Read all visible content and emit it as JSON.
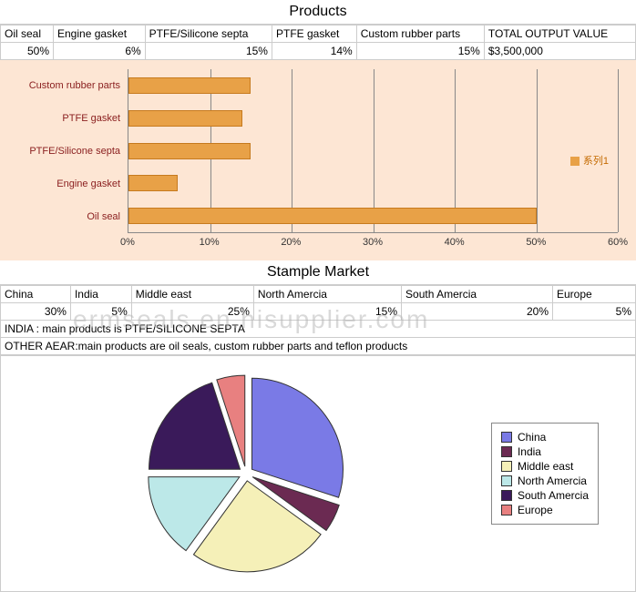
{
  "products": {
    "title": "Products",
    "headers": [
      "Oil seal",
      "Engine gasket",
      "PTFE/Silicone septa",
      "PTFE gasket",
      "Custom rubber parts",
      "TOTAL OUTPUT VALUE"
    ],
    "values": [
      "50%",
      "6%",
      "15%",
      "14%",
      "15%",
      "$3,500,000"
    ]
  },
  "barChart": {
    "bg": "#fde6d4",
    "barColor": "#e8a147",
    "barBorder": "#c67a1e",
    "labelColor": "#8b2020",
    "categories": [
      "Custom rubber parts",
      "PTFE gasket",
      "PTFE/Silicone septa",
      "Engine gasket",
      "Oil seal"
    ],
    "values": [
      15,
      14,
      15,
      6,
      50
    ],
    "xticks": [
      0,
      10,
      20,
      30,
      40,
      50,
      60
    ],
    "xmax": 60,
    "legend": "系列1"
  },
  "market": {
    "title": "Stample Market",
    "headers": [
      "China",
      "India",
      "Middle east",
      "North Amercia",
      "South Amercia",
      "Europe"
    ],
    "values": [
      "30%",
      "5%",
      "25%",
      "15%",
      "20%",
      "5%"
    ]
  },
  "notes": {
    "line1": "INDIA : main products is PTFE/SILICONE SEPTA",
    "line2": "OTHER AEAR:main products are oil seals, custom rubber parts and teflon products"
  },
  "pie": {
    "slices": [
      {
        "label": "China",
        "value": 30,
        "color": "#7a7ae6"
      },
      {
        "label": "India",
        "value": 5,
        "color": "#6b2a52"
      },
      {
        "label": "Middle east",
        "value": 25,
        "color": "#f5f0b8"
      },
      {
        "label": "North Amercia",
        "value": 15,
        "color": "#bce8e8"
      },
      {
        "label": "South Amercia",
        "value": 20,
        "color": "#3a1a5a"
      },
      {
        "label": "Europe",
        "value": 5,
        "color": "#e88080"
      }
    ],
    "radius": 100,
    "gap": 8,
    "stroke": "#333"
  },
  "watermark": "ermseals.en.hisupplier.com"
}
